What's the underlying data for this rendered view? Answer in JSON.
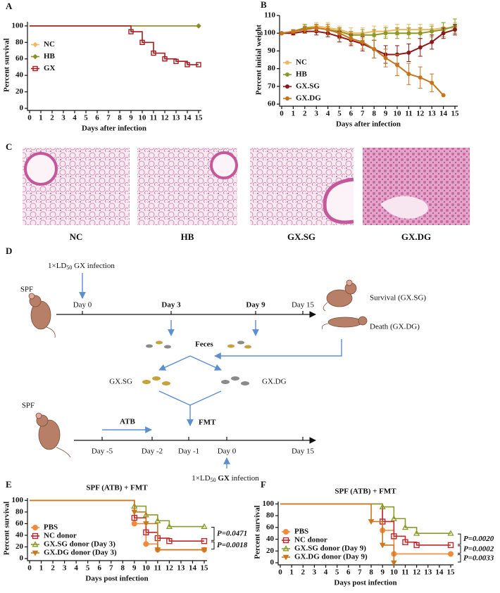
{
  "chart_data": [
    {
      "panel": "A",
      "type": "step",
      "ylabel": "Percent survival",
      "xlabel": "Days after infection",
      "xlim": [
        0,
        15
      ],
      "ylim": [
        0,
        105
      ],
      "xticks": [
        0,
        1,
        2,
        3,
        4,
        5,
        6,
        7,
        8,
        9,
        10,
        11,
        12,
        13,
        14,
        15
      ],
      "yticks": [
        0,
        20,
        40,
        60,
        80,
        100
      ],
      "legend": "center left",
      "series": [
        {
          "name": "NC",
          "color": "#f0b860",
          "marker": "diamond",
          "x": [
            0,
            15
          ],
          "values": [
            100,
            100
          ]
        },
        {
          "name": "HB",
          "color": "#8c8c2c",
          "marker": "diamond",
          "x": [
            0,
            15
          ],
          "values": [
            100,
            100
          ]
        },
        {
          "name": "GX",
          "color": "#a51c1c",
          "marker": "square",
          "x": [
            0,
            9,
            10,
            11,
            12,
            13,
            14,
            15
          ],
          "values": [
            100,
            93,
            80,
            67,
            60,
            57,
            53,
            53
          ]
        }
      ]
    },
    {
      "panel": "B",
      "type": "line",
      "ylabel": "Percent initial weight",
      "xlabel": "Days after infection",
      "xlim": [
        0,
        15
      ],
      "ylim": [
        60,
        110
      ],
      "xticks": [
        0,
        1,
        2,
        3,
        4,
        5,
        6,
        7,
        8,
        9,
        10,
        11,
        12,
        13,
        14,
        15
      ],
      "yticks": [
        60,
        70,
        80,
        90,
        100,
        110
      ],
      "legend": "lower left",
      "x": [
        0,
        1,
        2,
        3,
        4,
        5,
        6,
        7,
        8,
        9,
        10,
        11,
        12,
        13,
        14,
        15
      ],
      "series": [
        {
          "name": "NC",
          "color": "#f0b860",
          "marker": "circle",
          "values": [
            100,
            101,
            103,
            104,
            103,
            102,
            100,
            100,
            101,
            101,
            102,
            102,
            102,
            102,
            103,
            103
          ],
          "errors": [
            0,
            1,
            2,
            2,
            3,
            2,
            3,
            3,
            3,
            3,
            3,
            3,
            3,
            3,
            3,
            3
          ]
        },
        {
          "name": "HB",
          "color": "#8a9a2a",
          "marker": "circle",
          "values": [
            100,
            101,
            103,
            103,
            102,
            101,
            99,
            99,
            99,
            100,
            100,
            100,
            100,
            101,
            102,
            104
          ],
          "errors": [
            0,
            1,
            2,
            2,
            2,
            2,
            2,
            3,
            3,
            3,
            3,
            3,
            3,
            3,
            4,
            4
          ]
        },
        {
          "name": "GX.SG",
          "color": "#8b1a1a",
          "marker": "circle",
          "values": [
            100,
            100,
            101,
            101,
            100,
            98,
            96,
            94,
            91,
            88,
            88,
            89,
            92,
            95,
            100,
            102
          ],
          "errors": [
            0,
            1,
            1,
            2,
            2,
            3,
            3,
            4,
            5,
            5,
            5,
            5,
            5,
            4,
            3,
            3
          ]
        },
        {
          "name": "GX.DG",
          "color": "#c8741c",
          "marker": "circle",
          "values": [
            100,
            101,
            102,
            103,
            102,
            100,
            97,
            95,
            91,
            86,
            82,
            77,
            75,
            72,
            65,
            null
          ],
          "errors": [
            0,
            1,
            2,
            2,
            3,
            3,
            3,
            4,
            5,
            5,
            6,
            6,
            6,
            5,
            0,
            null
          ]
        }
      ]
    },
    {
      "panel": "E",
      "type": "step",
      "title": "SPF (ATB) + FMT",
      "ylabel": "Percent survival",
      "xlabel": "Days post infection",
      "xlim": [
        0,
        15
      ],
      "ylim": [
        0,
        104
      ],
      "xticks": [
        0,
        1,
        2,
        3,
        4,
        5,
        6,
        7,
        8,
        9,
        10,
        11,
        12,
        13,
        14,
        15
      ],
      "yticks": [
        0,
        20,
        40,
        60,
        80,
        100
      ],
      "legend": "lower left",
      "series": [
        {
          "name": "PBS",
          "color": "#f08a3c",
          "marker": "circle",
          "x": [
            0,
            9,
            10,
            11,
            15
          ],
          "values": [
            100,
            60,
            25,
            15,
            15
          ]
        },
        {
          "name": "NC donor",
          "color": "#c0282c",
          "marker": "square",
          "x": [
            0,
            9,
            10,
            11,
            12,
            15
          ],
          "values": [
            100,
            70,
            45,
            35,
            30,
            30
          ]
        },
        {
          "name": "GX.SG donor (Day 3)",
          "color": "#8a9a2a",
          "marker": "triangle",
          "x": [
            0,
            9,
            10,
            11,
            12,
            15
          ],
          "values": [
            100,
            90,
            75,
            65,
            55,
            55
          ]
        },
        {
          "name": "GX.DG donor (Day 3)",
          "color": "#c8781e",
          "marker": "triangle-down",
          "x": [
            0,
            9,
            10,
            11,
            15
          ],
          "values": [
            100,
            80,
            60,
            15,
            15
          ]
        }
      ],
      "brackets": [
        {
          "label": "P=0.0471",
          "y": [
            55,
            30
          ]
        },
        {
          "label": "P=0.0018",
          "y": [
            30,
            15
          ]
        }
      ]
    },
    {
      "panel": "F",
      "type": "step",
      "title": "SPF (ATB) + FMT",
      "ylabel": "Percent survival",
      "xlabel": "Days post infection",
      "xlim": [
        0,
        15
      ],
      "ylim": [
        0,
        104
      ],
      "xticks": [
        0,
        1,
        2,
        3,
        4,
        5,
        6,
        7,
        8,
        9,
        10,
        11,
        12,
        13,
        14,
        15
      ],
      "yticks": [
        0,
        20,
        40,
        60,
        80,
        100
      ],
      "legend": "lower left",
      "series": [
        {
          "name": "PBS",
          "color": "#f08a3c",
          "marker": "circle",
          "x": [
            0,
            9,
            10,
            15
          ],
          "values": [
            100,
            55,
            15,
            15
          ]
        },
        {
          "name": "NC donor",
          "color": "#c0282c",
          "marker": "square",
          "x": [
            0,
            9,
            10,
            11,
            12,
            15
          ],
          "values": [
            100,
            70,
            45,
            35,
            30,
            30
          ]
        },
        {
          "name": "GX.SG donor (Day 9)",
          "color": "#8a9a2a",
          "marker": "triangle",
          "x": [
            0,
            9,
            10,
            11,
            12,
            15
          ],
          "values": [
            100,
            95,
            75,
            60,
            50,
            50
          ]
        },
        {
          "name": "GX.DG donor (Day 9)",
          "color": "#c8781e",
          "marker": "triangle-down",
          "x": [
            0,
            8,
            9,
            10
          ],
          "values": [
            100,
            70,
            30,
            0
          ]
        }
      ],
      "brackets": [
        {
          "label": "P=0.0020",
          "y": [
            50,
            30
          ]
        },
        {
          "label": "P=0.0002",
          "y": [
            30,
            15
          ]
        },
        {
          "label": "P=0.0033",
          "y": [
            15,
            0
          ]
        }
      ]
    }
  ],
  "histology": {
    "panel": "C",
    "labels": [
      "NC",
      "HB",
      "GX.SG",
      "GX.DG"
    ]
  },
  "diagram": {
    "panel": "D",
    "infection_top": {
      "prefix": "1×LD",
      "sub": "50",
      "agent": "GX",
      "suffix": "infection"
    },
    "spf_top": "SPF",
    "timeline_top": [
      "Day 0",
      "Day 3",
      "Day 9",
      "Day 15"
    ],
    "survival": "Survival (GX.SG)",
    "death": "Death (GX.DG)",
    "feces": "Feces",
    "group_sg": "GX.SG",
    "group_dg": "GX.DG",
    "spf_bottom": "SPF",
    "atb": "ATB",
    "fmt": "FMT",
    "timeline_bottom": [
      "Day -5",
      "Day -2",
      "Day -1",
      "Day 0",
      "Day 15"
    ],
    "infection_bottom": {
      "prefix": "1×LD",
      "sub": "50",
      "agent": "GX",
      "suffix": "infection"
    }
  }
}
